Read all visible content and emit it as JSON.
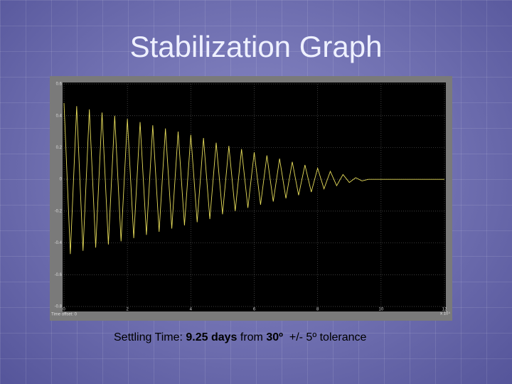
{
  "chart_data": {
    "type": "line",
    "title": "Stabilization Graph",
    "x": [
      0,
      0.2,
      0.4,
      0.6,
      0.8,
      1,
      1.2,
      1.4,
      1.6,
      1.8,
      2,
      2.2,
      2.4,
      2.6,
      2.8,
      3,
      3.2,
      3.4,
      3.6,
      3.8,
      4,
      4.2,
      4.4,
      4.6,
      4.8,
      5,
      5.2,
      5.4,
      5.6,
      5.8,
      6,
      6.2,
      6.4,
      6.6,
      6.8,
      7,
      7.2,
      7.4,
      7.6,
      7.8,
      8,
      8.2,
      8.4,
      8.6,
      8.8,
      9,
      9.2,
      9.4,
      9.6,
      9.8,
      10,
      10.2,
      10.4,
      10.6,
      10.8,
      11,
      11.2,
      11.4,
      11.6,
      11.8,
      12
    ],
    "values": [
      0.48,
      -0.47,
      0.46,
      -0.45,
      0.44,
      -0.43,
      0.42,
      -0.41,
      0.4,
      -0.39,
      0.38,
      -0.37,
      0.36,
      -0.35,
      0.34,
      -0.33,
      0.32,
      -0.31,
      0.3,
      -0.29,
      0.28,
      -0.27,
      0.26,
      -0.25,
      0.23,
      -0.22,
      0.21,
      -0.2,
      0.19,
      -0.18,
      0.17,
      -0.16,
      0.15,
      -0.14,
      0.13,
      -0.12,
      0.11,
      -0.1,
      0.09,
      -0.08,
      0.07,
      -0.06,
      0.05,
      -0.04,
      0.03,
      -0.02,
      0.01,
      -0.01,
      0,
      0,
      0,
      0,
      0,
      0,
      0,
      0,
      0,
      0,
      0,
      0,
      0
    ],
    "color": "#e6dc5a",
    "xlim": [
      0,
      12
    ],
    "xticks": [
      0,
      2,
      4,
      6,
      8,
      10,
      12
    ],
    "ylim": [
      -0.8,
      0.6
    ],
    "yticks": [
      0.6,
      0.4,
      0.2,
      0,
      -0.2,
      -0.4,
      -0.6,
      -0.8
    ],
    "grid": true,
    "x_multiplier": "x 10⁴",
    "x_offset_label": "Time offset: 0",
    "caption": [
      "Settling Time: ",
      "9.25 days",
      " from ",
      "30º",
      "  +/- 5º tolerance"
    ]
  }
}
